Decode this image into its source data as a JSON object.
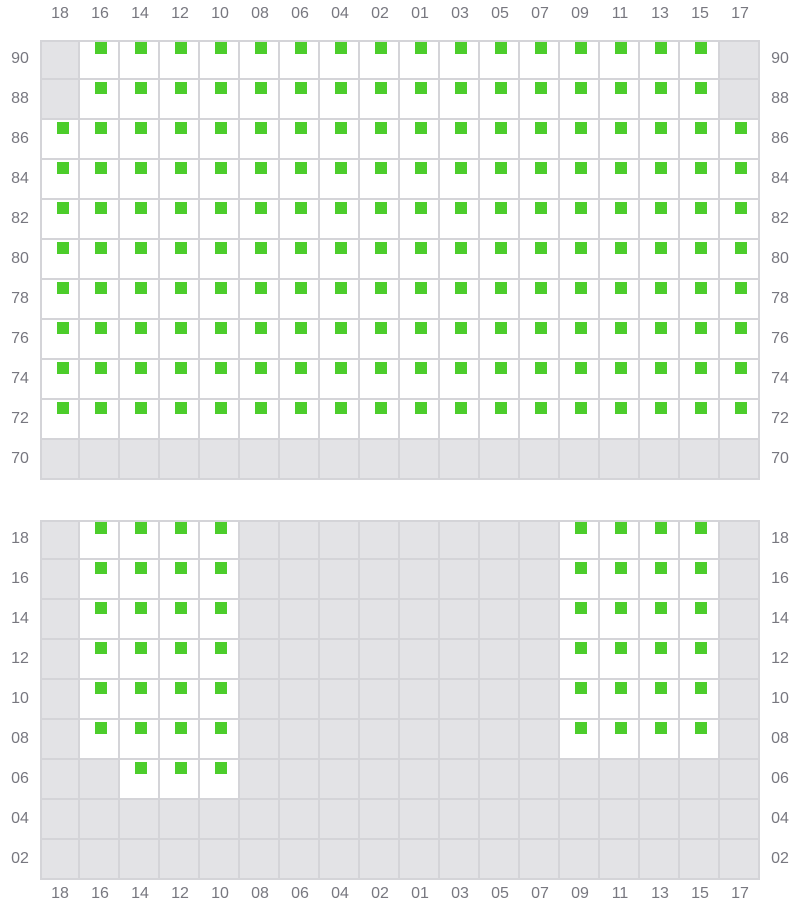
{
  "columns": [
    "18",
    "16",
    "14",
    "12",
    "10",
    "08",
    "06",
    "04",
    "02",
    "01",
    "03",
    "05",
    "07",
    "09",
    "11",
    "13",
    "15",
    "17"
  ],
  "colors": {
    "available": "#4ccd2b",
    "unavailable": "#e3e3e6",
    "open": "#ffffff",
    "border": "#d4d4d8",
    "label": "#77777f"
  },
  "sections": [
    {
      "rows": [
        {
          "label": "90",
          "open": [
            "16",
            "14",
            "12",
            "10",
            "08",
            "06",
            "04",
            "02",
            "01",
            "03",
            "05",
            "07",
            "09",
            "11",
            "13",
            "15"
          ]
        },
        {
          "label": "88",
          "open": [
            "16",
            "14",
            "12",
            "10",
            "08",
            "06",
            "04",
            "02",
            "01",
            "03",
            "05",
            "07",
            "09",
            "11",
            "13",
            "15"
          ]
        },
        {
          "label": "86",
          "open": [
            "18",
            "16",
            "14",
            "12",
            "10",
            "08",
            "06",
            "04",
            "02",
            "01",
            "03",
            "05",
            "07",
            "09",
            "11",
            "13",
            "15",
            "17"
          ]
        },
        {
          "label": "84",
          "open": [
            "18",
            "16",
            "14",
            "12",
            "10",
            "08",
            "06",
            "04",
            "02",
            "01",
            "03",
            "05",
            "07",
            "09",
            "11",
            "13",
            "15",
            "17"
          ]
        },
        {
          "label": "82",
          "open": [
            "18",
            "16",
            "14",
            "12",
            "10",
            "08",
            "06",
            "04",
            "02",
            "01",
            "03",
            "05",
            "07",
            "09",
            "11",
            "13",
            "15",
            "17"
          ]
        },
        {
          "label": "80",
          "open": [
            "18",
            "16",
            "14",
            "12",
            "10",
            "08",
            "06",
            "04",
            "02",
            "01",
            "03",
            "05",
            "07",
            "09",
            "11",
            "13",
            "15",
            "17"
          ]
        },
        {
          "label": "78",
          "open": [
            "18",
            "16",
            "14",
            "12",
            "10",
            "08",
            "06",
            "04",
            "02",
            "01",
            "03",
            "05",
            "07",
            "09",
            "11",
            "13",
            "15",
            "17"
          ]
        },
        {
          "label": "76",
          "open": [
            "18",
            "16",
            "14",
            "12",
            "10",
            "08",
            "06",
            "04",
            "02",
            "01",
            "03",
            "05",
            "07",
            "09",
            "11",
            "13",
            "15",
            "17"
          ]
        },
        {
          "label": "74",
          "open": [
            "18",
            "16",
            "14",
            "12",
            "10",
            "08",
            "06",
            "04",
            "02",
            "01",
            "03",
            "05",
            "07",
            "09",
            "11",
            "13",
            "15",
            "17"
          ]
        },
        {
          "label": "72",
          "open": [
            "18",
            "16",
            "14",
            "12",
            "10",
            "08",
            "06",
            "04",
            "02",
            "01",
            "03",
            "05",
            "07",
            "09",
            "11",
            "13",
            "15",
            "17"
          ]
        },
        {
          "label": "70",
          "open": []
        }
      ]
    },
    {
      "rows": [
        {
          "label": "18",
          "open": [
            "16",
            "14",
            "12",
            "10",
            "09",
            "11",
            "13",
            "15"
          ]
        },
        {
          "label": "16",
          "open": [
            "16",
            "14",
            "12",
            "10",
            "09",
            "11",
            "13",
            "15"
          ]
        },
        {
          "label": "14",
          "open": [
            "16",
            "14",
            "12",
            "10",
            "09",
            "11",
            "13",
            "15"
          ]
        },
        {
          "label": "12",
          "open": [
            "16",
            "14",
            "12",
            "10",
            "09",
            "11",
            "13",
            "15"
          ]
        },
        {
          "label": "10",
          "open": [
            "16",
            "14",
            "12",
            "10",
            "09",
            "11",
            "13",
            "15"
          ]
        },
        {
          "label": "08",
          "open": [
            "16",
            "14",
            "12",
            "10",
            "09",
            "11",
            "13",
            "15"
          ]
        },
        {
          "label": "06",
          "open": [
            "14",
            "12",
            "10"
          ]
        },
        {
          "label": "04",
          "open": []
        },
        {
          "label": "02",
          "open": []
        }
      ]
    }
  ]
}
